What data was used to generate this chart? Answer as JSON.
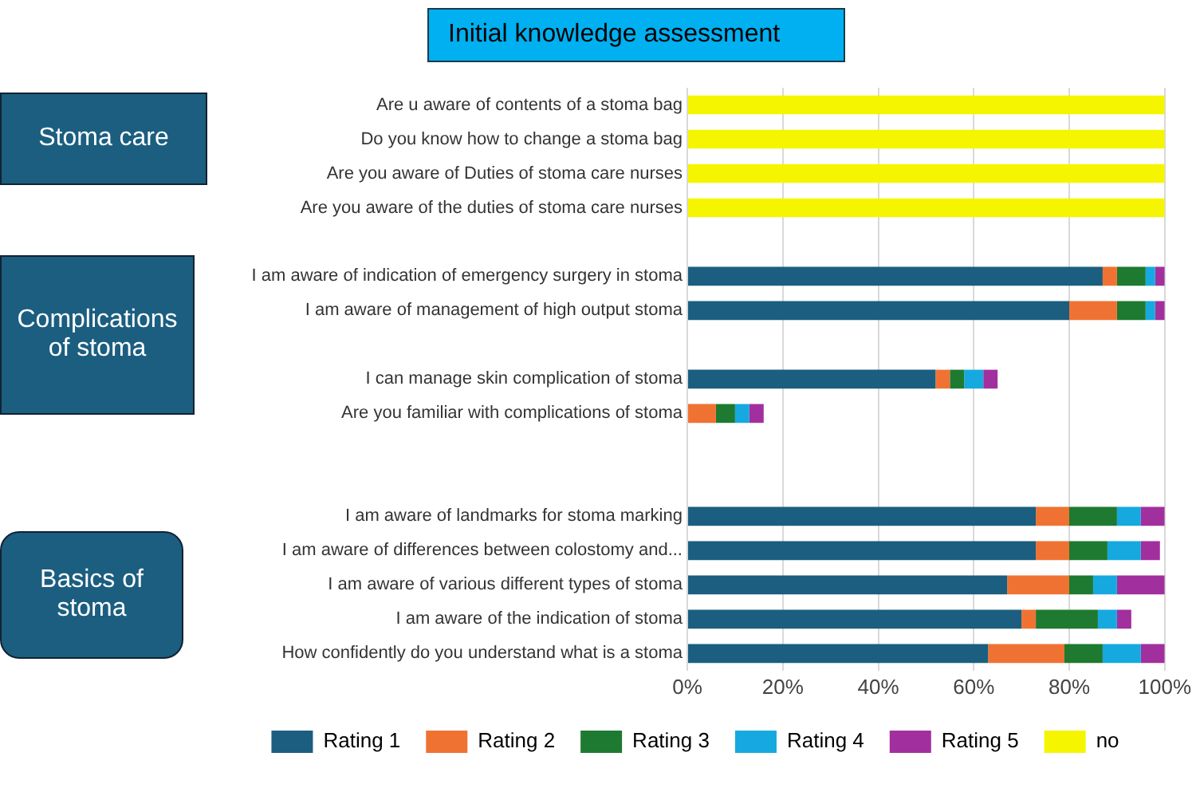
{
  "chart_data": {
    "type": "bar",
    "orientation": "horizontal",
    "stacked": true,
    "title": "Initial knowledge assessment",
    "categories": [
      "Are u aware of contents of a stoma bag",
      "Do you know how to change a stoma bag",
      "Are you aware of Duties of stoma care nurses",
      "Are you aware of the duties of stoma care nurses",
      null,
      "I am aware of indication of emergency surgery in stoma",
      "I am aware of management of high output stoma",
      null,
      "I can manage skin complication of stoma",
      "Are you familiar with complications of stoma",
      null,
      null,
      "I am aware of landmarks for stoma marking",
      "I am aware of differences between colostomy and...",
      "I am aware of various different types of stoma",
      "I am aware of the indication of stoma",
      "How confidently do you understand what is a stoma"
    ],
    "series": [
      {
        "name": "Rating 1",
        "color": "#1b5e80",
        "values": [
          null,
          null,
          null,
          null,
          null,
          87,
          80,
          null,
          52,
          null,
          null,
          null,
          73,
          73,
          67,
          70,
          63
        ]
      },
      {
        "name": "Rating 2",
        "color": "#f07232",
        "values": [
          null,
          null,
          null,
          null,
          null,
          3,
          10,
          null,
          3,
          6,
          null,
          null,
          7,
          7,
          13,
          3,
          16
        ]
      },
      {
        "name": "Rating 3",
        "color": "#1e7a30",
        "values": [
          null,
          null,
          null,
          null,
          null,
          6,
          6,
          null,
          3,
          4,
          null,
          null,
          10,
          8,
          5,
          13,
          8
        ]
      },
      {
        "name": "Rating 4",
        "color": "#15a9e0",
        "values": [
          null,
          null,
          null,
          null,
          null,
          2,
          2,
          null,
          4,
          3,
          null,
          null,
          5,
          7,
          5,
          4,
          8
        ]
      },
      {
        "name": "Rating 5",
        "color": "#a22f9e",
        "values": [
          null,
          null,
          null,
          null,
          null,
          2,
          2,
          null,
          3,
          3,
          null,
          null,
          5,
          4,
          10,
          3,
          5
        ]
      },
      {
        "name": "no",
        "color": "#f5f500",
        "values": [
          100,
          100,
          100,
          100,
          null,
          null,
          null,
          null,
          null,
          null,
          null,
          null,
          null,
          null,
          null,
          null,
          null
        ]
      }
    ],
    "xlim": [
      0,
      100
    ],
    "xticks": [
      {
        "value": 0,
        "label": "0%"
      },
      {
        "value": 20,
        "label": "20%"
      },
      {
        "value": 40,
        "label": "40%"
      },
      {
        "value": 60,
        "label": "60%"
      },
      {
        "value": 80,
        "label": "80%"
      },
      {
        "value": 100,
        "label": "100%"
      }
    ],
    "grid": "x",
    "legend": "bottom",
    "annotations": [
      "Stoma care",
      "Complications of stoma",
      "Basics of stoma"
    ]
  }
}
